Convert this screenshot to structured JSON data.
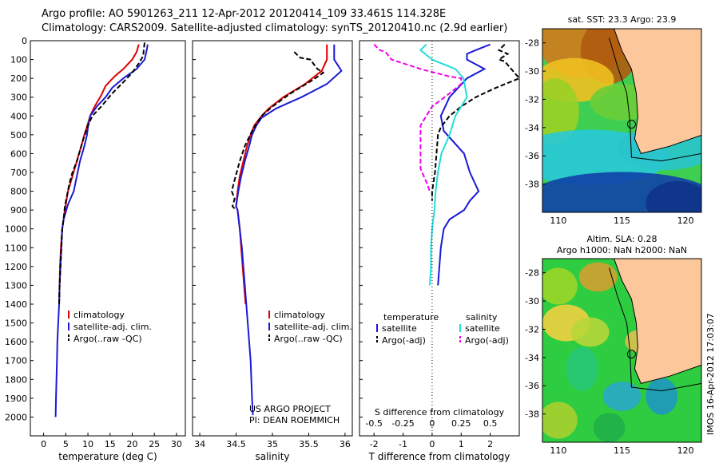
{
  "header": {
    "line1": "Argo profile: AO 5901263_211 12-Apr-2012 20120414_109 33.461S 114.328E",
    "line2": "Climatology: CARS2009. Satellite-adjusted climatology: synTS_20120410.nc (2.9d earlier)"
  },
  "colors": {
    "clim": "#dd0000",
    "sat": "#1a1ad6",
    "argo": "#000000",
    "sal_sat": "#22dddd",
    "sal_argo": "#ee00ee"
  },
  "chart_data": [
    {
      "type": "line",
      "xlabel": "temperature (deg C)",
      "xticks": [
        "0",
        "5",
        "10",
        "15",
        "20",
        "25",
        "30"
      ],
      "xlim": [
        -3,
        32
      ],
      "ylim": [
        0,
        2100
      ],
      "yticks": [
        "0",
        "100",
        "200",
        "300",
        "400",
        "500",
        "600",
        "700",
        "800",
        "900",
        "1000",
        "1100",
        "1200",
        "1300",
        "1400",
        "1500",
        "1600",
        "1700",
        "1800",
        "1900",
        "2000"
      ],
      "legend": [
        "climatology",
        "satellite-adj. clim.",
        "Argo(..raw -QC)"
      ],
      "series": [
        {
          "name": "climatology",
          "style": "solid",
          "color": "#dd0000",
          "points": [
            [
              21.5,
              20
            ],
            [
              21,
              60
            ],
            [
              20,
              100
            ],
            [
              18,
              150
            ],
            [
              16,
              190
            ],
            [
              14,
              240
            ],
            [
              13,
              290
            ],
            [
              11.5,
              350
            ],
            [
              10.5,
              400
            ],
            [
              10,
              440
            ],
            [
              9.2,
              500
            ],
            [
              8.5,
              560
            ],
            [
              7.5,
              640
            ],
            [
              6.5,
              720
            ],
            [
              5.5,
              800
            ],
            [
              4.8,
              900
            ],
            [
              4.2,
              1000
            ],
            [
              3.9,
              1100
            ],
            [
              3.7,
              1200
            ],
            [
              3.6,
              1300
            ],
            [
              3.5,
              1400
            ]
          ]
        },
        {
          "name": "satellite-adj. clim.",
          "style": "solid",
          "color": "#1a1ad6",
          "points": [
            [
              23.5,
              20
            ],
            [
              23.2,
              60
            ],
            [
              22.8,
              100
            ],
            [
              21,
              150
            ],
            [
              18,
              200
            ],
            [
              15.5,
              250
            ],
            [
              14,
              300
            ],
            [
              12,
              350
            ],
            [
              10.5,
              400
            ],
            [
              10,
              460
            ],
            [
              9.8,
              500
            ],
            [
              9.2,
              560
            ],
            [
              8.2,
              640
            ],
            [
              7.5,
              720
            ],
            [
              6.8,
              800
            ],
            [
              5.5,
              870
            ],
            [
              4.5,
              950
            ],
            [
              4.2,
              1000
            ],
            [
              4,
              1100
            ],
            [
              3.8,
              1200
            ],
            [
              3.6,
              1300
            ],
            [
              3.5,
              1400
            ],
            [
              3.3,
              1500
            ],
            [
              3.1,
              1600
            ],
            [
              3,
              1700
            ],
            [
              2.9,
              1800
            ],
            [
              2.8,
              1900
            ],
            [
              2.7,
              2000
            ]
          ]
        },
        {
          "name": "Argo(..raw -QC)",
          "style": "dash",
          "color": "#000000",
          "points": [
            [
              22.8,
              10
            ],
            [
              22.6,
              50
            ],
            [
              22.5,
              80
            ],
            [
              21.5,
              120
            ],
            [
              20,
              170
            ],
            [
              18,
              220
            ],
            [
              15.5,
              280
            ],
            [
              13,
              350
            ],
            [
              11,
              400
            ],
            [
              10,
              450
            ],
            [
              9,
              520
            ],
            [
              8.5,
              560
            ],
            [
              7.5,
              640
            ],
            [
              6.5,
              700
            ],
            [
              5.8,
              760
            ],
            [
              5.3,
              820
            ],
            [
              4.8,
              880
            ],
            [
              4.5,
              950
            ],
            [
              4.2,
              1000
            ],
            [
              4,
              1100
            ],
            [
              3.8,
              1200
            ],
            [
              3.6,
              1300
            ],
            [
              3.5,
              1400
            ]
          ]
        }
      ]
    },
    {
      "type": "line",
      "xlabel": "salinity",
      "xticks": [
        "34",
        "34.5",
        "35",
        "35.5",
        "36"
      ],
      "xlim": [
        33.9,
        36.1
      ],
      "ylim": [
        0,
        2100
      ],
      "legend": [
        "climatology",
        "satellite-adj. clim.",
        "Argo(..raw -QC)"
      ],
      "annotations": [
        "US ARGO PROJECT",
        "PI: DEAN ROEMMICH"
      ],
      "series": [
        {
          "name": "climatology",
          "style": "solid",
          "color": "#dd0000",
          "points": [
            [
              35.75,
              20
            ],
            [
              35.75,
              100
            ],
            [
              35.68,
              160
            ],
            [
              35.45,
              230
            ],
            [
              35.15,
              300
            ],
            [
              34.95,
              360
            ],
            [
              34.85,
              400
            ],
            [
              34.75,
              450
            ],
            [
              34.7,
              500
            ],
            [
              34.65,
              560
            ],
            [
              34.6,
              640
            ],
            [
              34.55,
              720
            ],
            [
              34.52,
              800
            ],
            [
              34.5,
              880
            ],
            [
              34.52,
              900
            ],
            [
              34.55,
              1000
            ],
            [
              34.57,
              1100
            ],
            [
              34.59,
              1200
            ],
            [
              34.61,
              1300
            ],
            [
              34.63,
              1400
            ]
          ]
        },
        {
          "name": "satellite-adj. clim.",
          "style": "solid",
          "color": "#1a1ad6",
          "points": [
            [
              35.85,
              20
            ],
            [
              35.85,
              100
            ],
            [
              35.95,
              160
            ],
            [
              35.75,
              230
            ],
            [
              35.4,
              300
            ],
            [
              35.05,
              360
            ],
            [
              34.85,
              410
            ],
            [
              34.78,
              450
            ],
            [
              34.72,
              500
            ],
            [
              34.68,
              560
            ],
            [
              34.62,
              640
            ],
            [
              34.57,
              720
            ],
            [
              34.53,
              800
            ],
            [
              34.5,
              880
            ],
            [
              34.52,
              900
            ],
            [
              34.55,
              1000
            ],
            [
              34.58,
              1100
            ],
            [
              34.6,
              1200
            ],
            [
              34.62,
              1300
            ],
            [
              34.64,
              1400
            ],
            [
              34.66,
              1500
            ],
            [
              34.68,
              1600
            ],
            [
              34.7,
              1700
            ],
            [
              34.71,
              1800
            ],
            [
              34.72,
              1900
            ],
            [
              34.73,
              1990
            ]
          ]
        },
        {
          "name": "Argo(..raw -QC)",
          "style": "dash",
          "color": "#000000",
          "points": [
            [
              35.3,
              60
            ],
            [
              35.38,
              90
            ],
            [
              35.52,
              100
            ],
            [
              35.62,
              150
            ],
            [
              35.7,
              170
            ],
            [
              35.55,
              210
            ],
            [
              35.25,
              280
            ],
            [
              35,
              350
            ],
            [
              34.85,
              400
            ],
            [
              34.72,
              480
            ],
            [
              34.62,
              560
            ],
            [
              34.55,
              640
            ],
            [
              34.48,
              740
            ],
            [
              34.44,
              800
            ],
            [
              34.48,
              840
            ],
            [
              34.45,
              880
            ],
            [
              34.5,
              900
            ]
          ]
        }
      ]
    },
    {
      "type": "line",
      "xlabel": "T difference from climatology",
      "xlabel2": "S difference from climatology",
      "xticks": [
        "-2",
        "-1",
        "0",
        "1",
        "2"
      ],
      "xticks2": [
        "-0.5",
        "-0.25",
        "0",
        "0.25",
        "0.5"
      ],
      "xlim": [
        -2.5,
        3.0
      ],
      "ylim": [
        0,
        2100
      ],
      "legend_heads": [
        "temperature",
        "salinity"
      ],
      "legend": [
        "satellite",
        "Argo(-adj)",
        "satellite",
        "Argo(-adj)"
      ],
      "series": [
        {
          "name": "T satellite",
          "style": "solid",
          "color": "#1a1ad6",
          "points": [
            [
              2,
              20
            ],
            [
              1.5,
              50
            ],
            [
              1.2,
              70
            ],
            [
              1.2,
              100
            ],
            [
              1.8,
              150
            ],
            [
              1.2,
              200
            ],
            [
              0.6,
              300
            ],
            [
              0.3,
              400
            ],
            [
              0.4,
              480
            ],
            [
              1.1,
              600
            ],
            [
              1.3,
              700
            ],
            [
              1.6,
              800
            ],
            [
              1.3,
              850
            ],
            [
              1.1,
              900
            ],
            [
              0.6,
              950
            ],
            [
              0.4,
              1000
            ],
            [
              0.3,
              1100
            ],
            [
              0.25,
              1200
            ],
            [
              0.2,
              1300
            ]
          ]
        },
        {
          "name": "T Argo(-adj)",
          "style": "dash",
          "color": "#000000",
          "points": [
            [
              2.5,
              20
            ],
            [
              2.3,
              50
            ],
            [
              2.6,
              70
            ],
            [
              2.3,
              100
            ],
            [
              2.5,
              110
            ],
            [
              3,
              200
            ],
            [
              2.2,
              250
            ],
            [
              1.5,
              300
            ],
            [
              1,
              350
            ],
            [
              0.6,
              400
            ],
            [
              0.3,
              460
            ],
            [
              0.2,
              500
            ],
            [
              0.15,
              600
            ],
            [
              0.1,
              700
            ],
            [
              0,
              800
            ],
            [
              0,
              850
            ]
          ]
        },
        {
          "name": "S satellite",
          "style": "solid",
          "color": "#22dddd",
          "points": [
            [
              -0.05,
              20
            ],
            [
              -0.1,
              50
            ],
            [
              0,
              100
            ],
            [
              0.2,
              150
            ],
            [
              0.27,
              200
            ],
            [
              0.3,
              300
            ],
            [
              0.2,
              400
            ],
            [
              0.15,
              500
            ],
            [
              0.08,
              600
            ],
            [
              0.05,
              700
            ],
            [
              0.03,
              800
            ],
            [
              0.02,
              900
            ],
            [
              0,
              1000
            ],
            [
              -0.01,
              1100
            ],
            [
              -0.01,
              1200
            ],
            [
              -0.02,
              1300
            ]
          ]
        },
        {
          "name": "S Argo(-adj)",
          "style": "dash",
          "color": "#ee00ee",
          "points": [
            [
              -0.5,
              20
            ],
            [
              -0.45,
              50
            ],
            [
              -0.4,
              60
            ],
            [
              -0.35,
              100
            ],
            [
              -0.1,
              150
            ],
            [
              0.15,
              190
            ],
            [
              0.25,
              200
            ],
            [
              0.25,
              230
            ],
            [
              0.15,
              280
            ],
            [
              0,
              350
            ],
            [
              -0.05,
              400
            ],
            [
              -0.1,
              450
            ],
            [
              -0.1,
              500
            ],
            [
              -0.1,
              600
            ],
            [
              -0.1,
              680
            ],
            [
              -0.05,
              750
            ],
            [
              -0.02,
              800
            ]
          ]
        }
      ]
    }
  ],
  "maps": [
    {
      "title1": "sat. SST: 23.3 Argo: 23.9",
      "lat_ticks": [
        "-28",
        "-30",
        "-32",
        "-34",
        "-36",
        "-38"
      ],
      "lon_ticks": [
        "110",
        "115",
        "120"
      ]
    },
    {
      "title1": "Altim. SLA: 0.28",
      "title2": "Argo h1000: NaN h2000: NaN",
      "lat_ticks": [
        "-28",
        "-30",
        "-32",
        "-34",
        "-36",
        "-38"
      ],
      "lon_ticks": [
        "110",
        "115",
        "120"
      ]
    }
  ],
  "footer_vertical": "IMOS 16-Apr-2012 17:03:07"
}
